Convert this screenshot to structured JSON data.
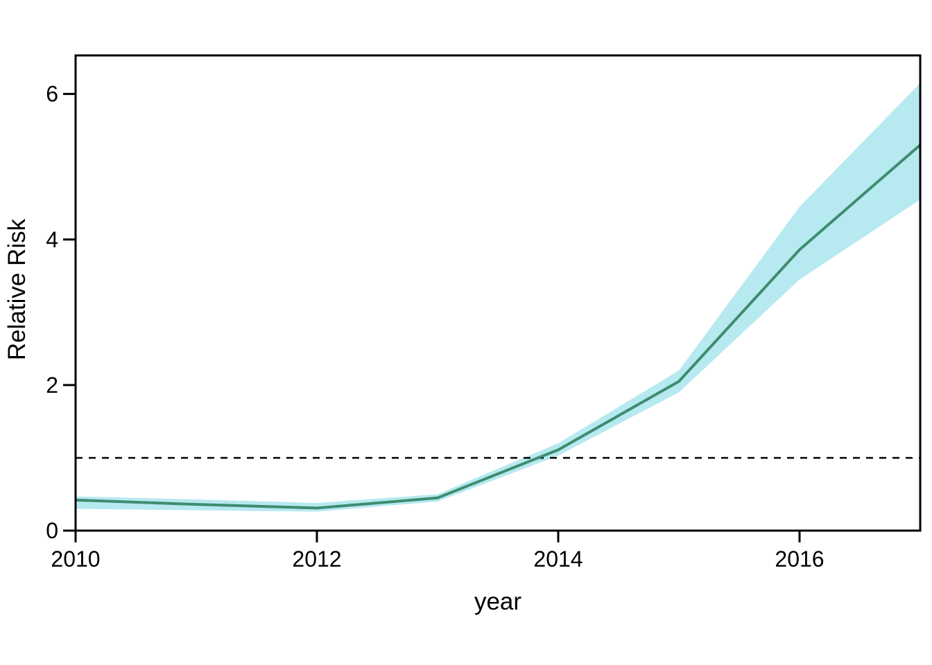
{
  "figure": {
    "background_color": "#ffffff",
    "axis_color": "#000000",
    "line_color": "#3e8c71",
    "ribbon_color": "#b7e9f0",
    "reference_line_color": "#000000"
  },
  "chart_data": {
    "type": "line",
    "title": "",
    "xlabel": "year",
    "ylabel": "Relative Risk",
    "x": [
      2010,
      2011,
      2012,
      2013,
      2014,
      2015,
      2016,
      2017
    ],
    "series": [
      {
        "name": "relative_risk_mean",
        "values": [
          0.42,
          0.36,
          0.31,
          0.45,
          1.11,
          2.05,
          3.86,
          5.3
        ]
      },
      {
        "name": "ci_lower",
        "values": [
          0.3,
          0.28,
          0.26,
          0.4,
          1.03,
          1.9,
          3.45,
          4.55
        ]
      },
      {
        "name": "ci_upper",
        "values": [
          0.47,
          0.43,
          0.38,
          0.5,
          1.2,
          2.2,
          4.45,
          6.15
        ]
      }
    ],
    "reference_line_y": 1,
    "x_ticks": [
      2010,
      2012,
      2014,
      2016
    ],
    "x_tick_labels": [
      "2010",
      "2012",
      "2014",
      "2016"
    ],
    "y_ticks": [
      0,
      2,
      4,
      6
    ],
    "y_tick_labels": [
      "0",
      "2",
      "4",
      "6"
    ],
    "xlim": [
      2010,
      2017
    ],
    "ylim": [
      0,
      6.53
    ],
    "grid": false,
    "legend": false
  }
}
